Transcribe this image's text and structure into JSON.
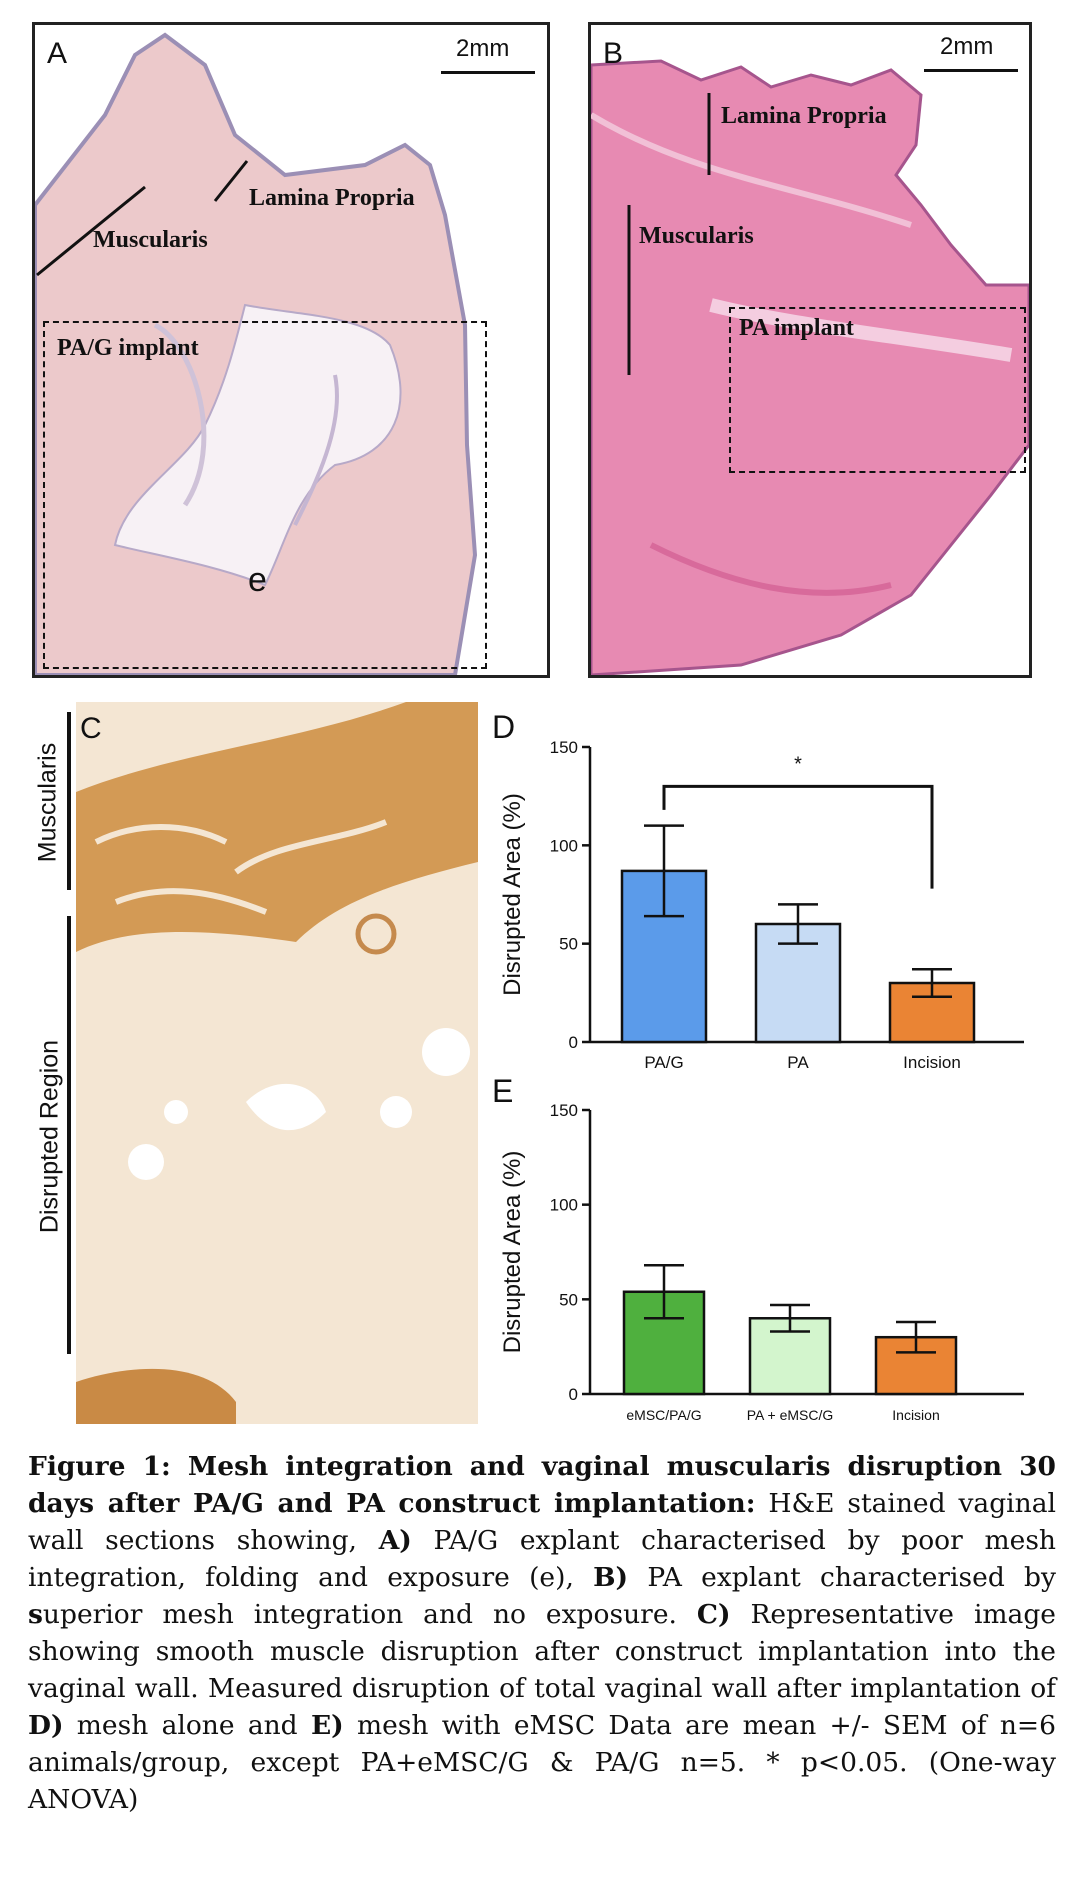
{
  "panels": {
    "a": {
      "letter": "A",
      "scale": "2mm",
      "labels": {
        "lamina": "Lamina Propria",
        "muscularis": "Muscularis",
        "implant": "PA/G implant",
        "exposure": "e"
      }
    },
    "b": {
      "letter": "B",
      "scale": "2mm",
      "labels": {
        "lamina": "Lamina Propria",
        "muscularis": "Muscularis",
        "implant": "PA implant"
      }
    },
    "c": {
      "letter": "C",
      "labels": {
        "muscularis": "Muscularis",
        "disrupted": "Disrupted Region"
      }
    }
  },
  "chart_data": [
    {
      "panel": "D",
      "type": "bar",
      "categories": [
        "PA/G",
        "PA",
        "Incision"
      ],
      "values": [
        87,
        60,
        30
      ],
      "errors": [
        23,
        10,
        7
      ],
      "colors": [
        "#5b9bea",
        "#c6dbf4",
        "#ea8434"
      ],
      "ylabel": "Disrupted  Area (%)",
      "ylim": [
        0,
        150
      ],
      "yticks": [
        "0",
        "50",
        "100",
        "150"
      ],
      "annotation": "*"
    },
    {
      "panel": "E",
      "type": "bar",
      "categories": [
        "eMSC/PA/G",
        "PA + eMSC/G",
        "Incision"
      ],
      "values": [
        54,
        40,
        30
      ],
      "errors": [
        14,
        7,
        8
      ],
      "colors": [
        "#4fb03e",
        "#d3f5cd",
        "#ea8434"
      ],
      "ylabel": "Disrupted  Area (%)",
      "ylim": [
        0,
        150
      ],
      "yticks": [
        "0",
        "50",
        "100",
        "150"
      ]
    }
  ],
  "caption": {
    "title": "Figure 1: Mesh integration and vaginal muscularis disruption 30 days after PA/G and PA construct implantation:",
    "t1": " H&E stained vaginal wall sections showing, ",
    "a": "A)",
    "t2": " PA/G explant characterised by poor mesh integration, folding and exposure (e), ",
    "b": "B)",
    "t3": " PA explant characterised by ",
    "s": "s",
    "t4": "uperior mesh integration and no exposure. ",
    "c": "C)",
    "t5": " Representative image showing smooth muscle disruption after construct implantation into the vaginal  wall. Measured disruption of total vaginal wall after implantation of ",
    "d": "D)",
    "t6": " mesh alone and ",
    "e": "E)",
    "t7": " mesh with eMSC Data are mean +/- SEM of n=6 animals/group, except PA+eMSC/G & PA/G n=5. * p<0.05. (One-way ANOVA)"
  }
}
